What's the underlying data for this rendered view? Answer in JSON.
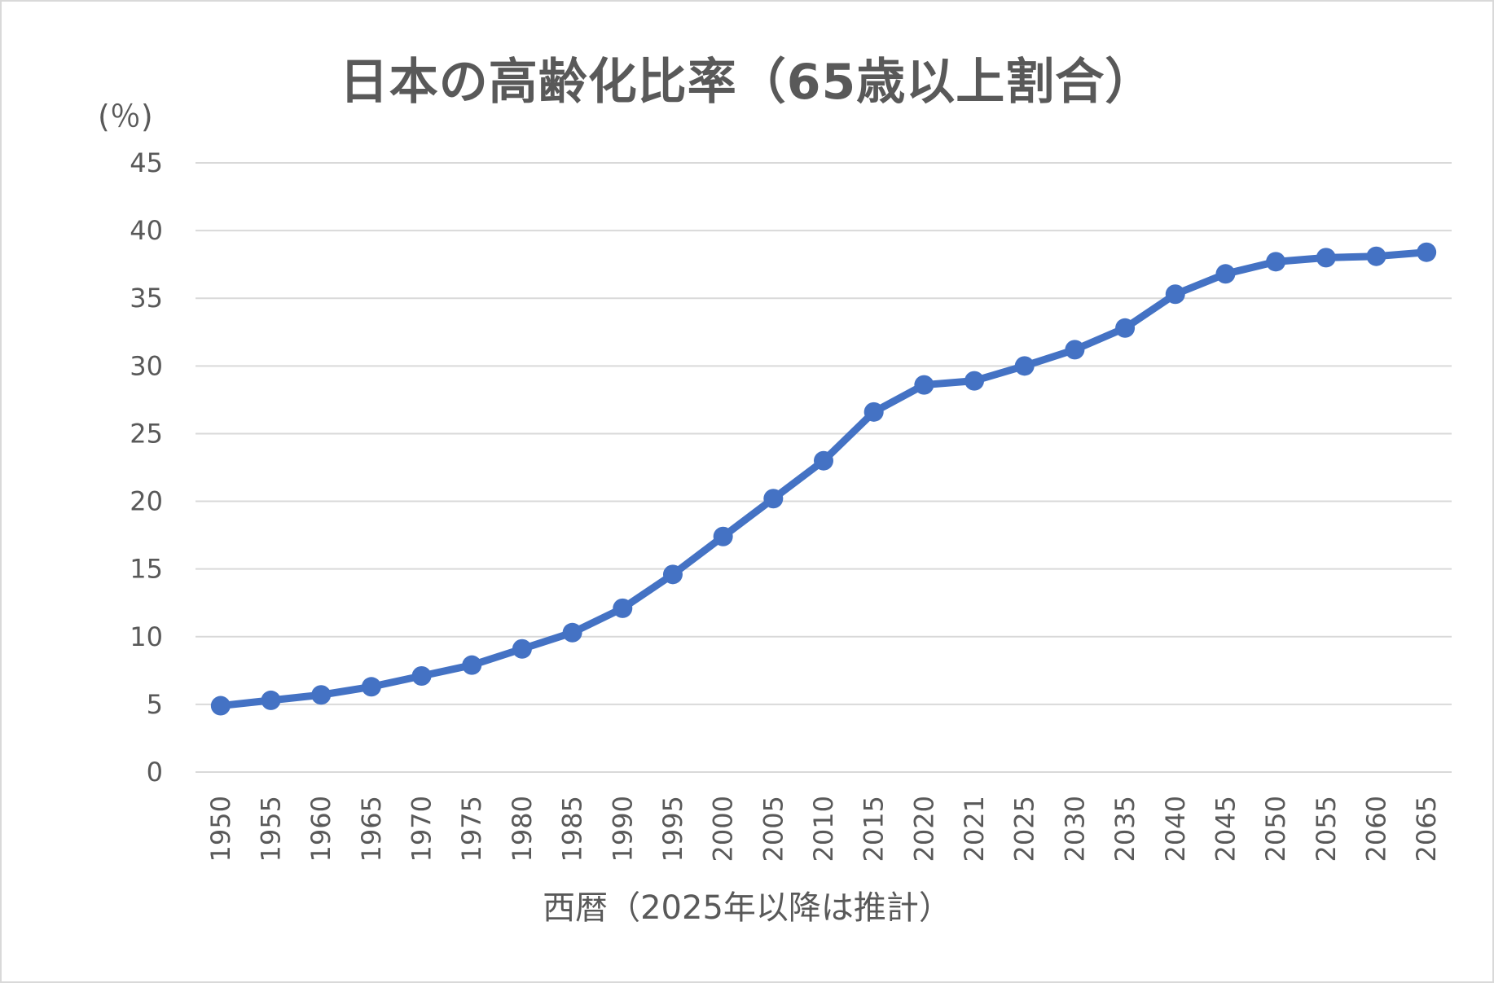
{
  "chart_data": {
    "type": "line",
    "title": "日本の高齢化比率（65歳以上割合）",
    "ylabel": "(％)",
    "xlabel": "西暦（2025年以降は推計）",
    "ylim": [
      0,
      45
    ],
    "yticks": [
      0,
      5,
      10,
      15,
      20,
      25,
      30,
      35,
      40,
      45
    ],
    "grid": true,
    "legend": "none",
    "categories": [
      "1950",
      "1955",
      "1960",
      "1965",
      "1970",
      "1975",
      "1980",
      "1985",
      "1990",
      "1995",
      "2000",
      "2005",
      "2010",
      "2015",
      "2020",
      "2021",
      "2025",
      "2030",
      "2035",
      "2040",
      "2045",
      "2050",
      "2055",
      "2060",
      "2065"
    ],
    "series": [
      {
        "values": [
          4.9,
          5.3,
          5.7,
          6.3,
          7.1,
          7.9,
          9.1,
          10.3,
          12.1,
          14.6,
          17.4,
          20.2,
          23.0,
          26.6,
          28.6,
          28.9,
          30.0,
          31.2,
          32.8,
          35.3,
          36.8,
          37.7,
          38.0,
          38.1,
          38.4
        ]
      }
    ],
    "colors": {
      "line": "#4472c4",
      "grid": "#d9d9d9",
      "text": "#595959"
    }
  }
}
